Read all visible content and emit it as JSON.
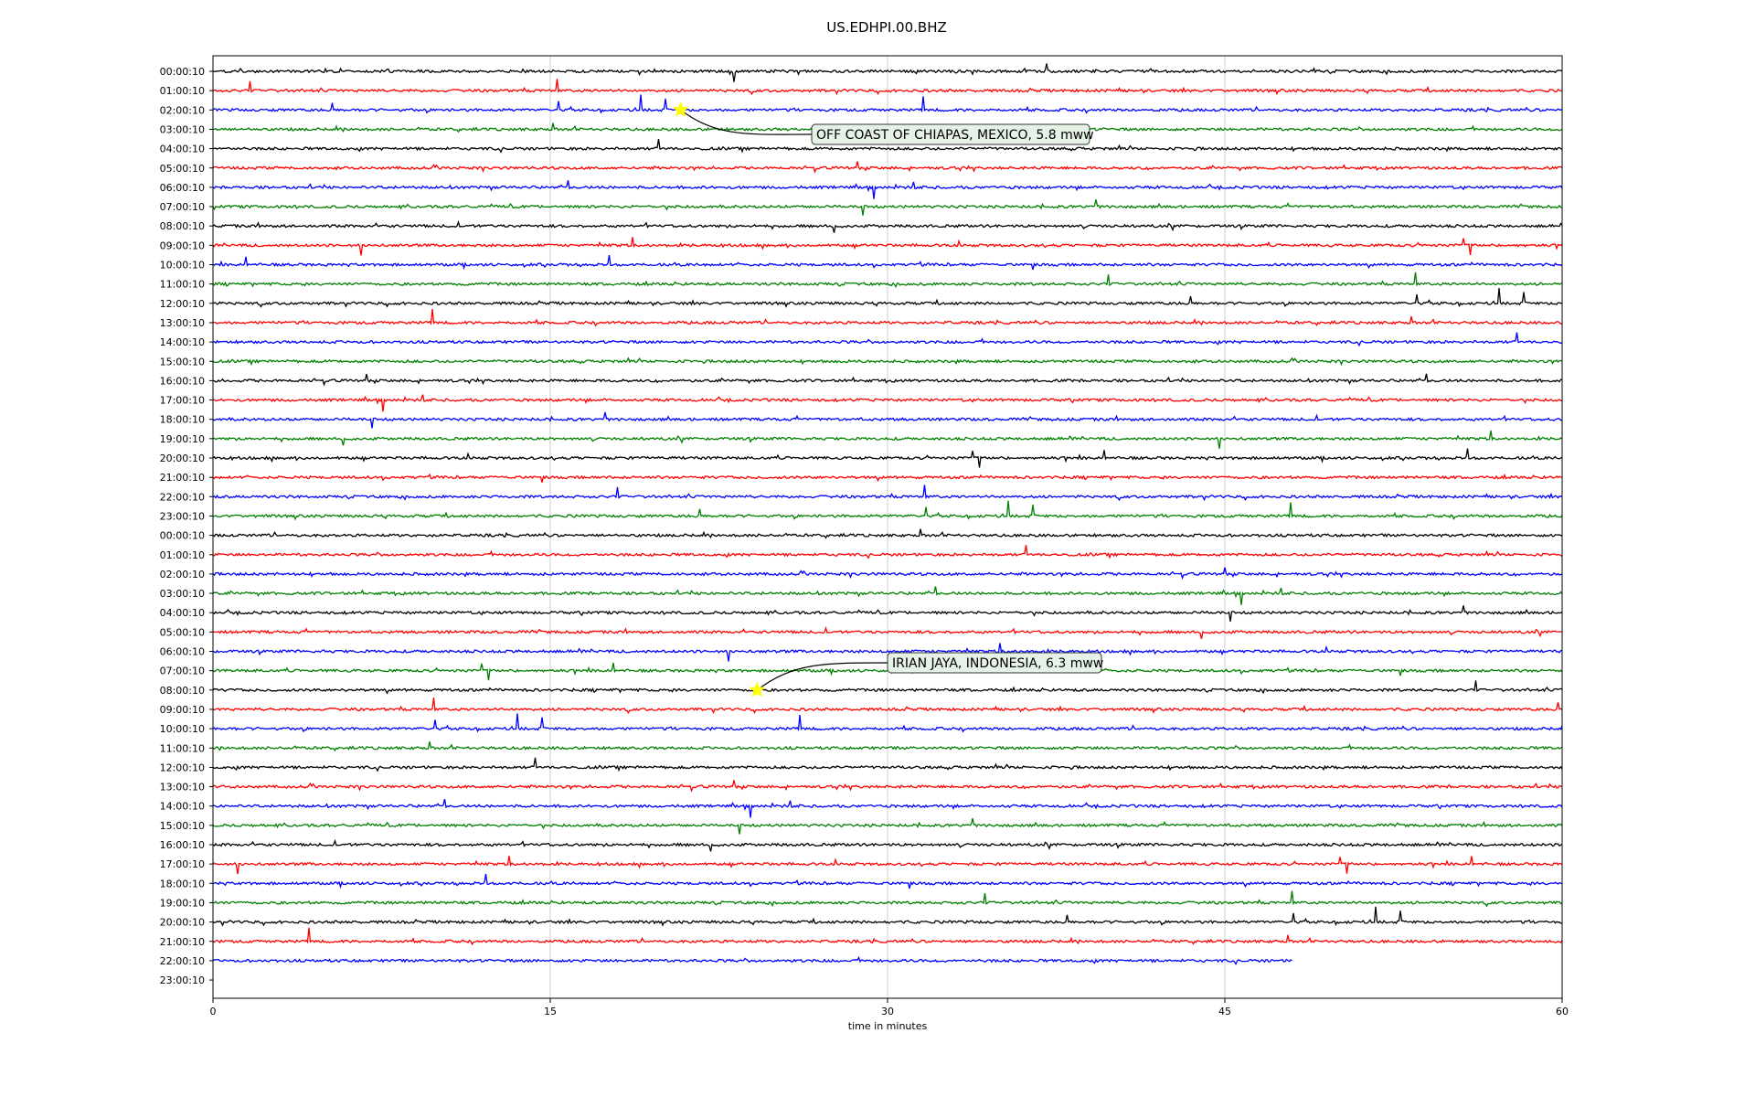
{
  "chart_data": {
    "type": "line",
    "title": "US.EDHPI.00.BHZ",
    "xlabel": "time in minutes",
    "xlim": [
      0,
      60
    ],
    "x_ticks": [
      0,
      15,
      30,
      45,
      60
    ],
    "grid": "vertical lines at x ticks",
    "trace_colors": [
      "#000000",
      "#ff0000",
      "#0000ff",
      "#008000"
    ],
    "rows": [
      "00:00:10",
      "01:00:10",
      "02:00:10",
      "03:00:10",
      "04:00:10",
      "05:00:10",
      "06:00:10",
      "07:00:10",
      "08:00:10",
      "09:00:10",
      "10:00:10",
      "11:00:10",
      "12:00:10",
      "13:00:10",
      "14:00:10",
      "15:00:10",
      "16:00:10",
      "17:00:10",
      "18:00:10",
      "19:00:10",
      "20:00:10",
      "21:00:10",
      "22:00:10",
      "23:00:10",
      "00:00:10",
      "01:00:10",
      "02:00:10",
      "03:00:10",
      "04:00:10",
      "05:00:10",
      "06:00:10",
      "07:00:10",
      "08:00:10",
      "09:00:10",
      "10:00:10",
      "11:00:10",
      "12:00:10",
      "13:00:10",
      "14:00:10",
      "15:00:10",
      "16:00:10",
      "17:00:10",
      "18:00:10",
      "19:00:10",
      "20:00:10",
      "21:00:10",
      "22:00:10",
      "23:00:10"
    ],
    "last_trace_end_minute": 48,
    "events": [
      {
        "label": "OFF COAST OF CHIAPAS, MEXICO, 5.8 mww",
        "row": 2,
        "minute": 20.8
      },
      {
        "label": "IRIAN JAYA, INDONESIA, 6.3 mww",
        "row": 32,
        "minute": 24.2
      }
    ],
    "marker_color": "#ffff00"
  }
}
